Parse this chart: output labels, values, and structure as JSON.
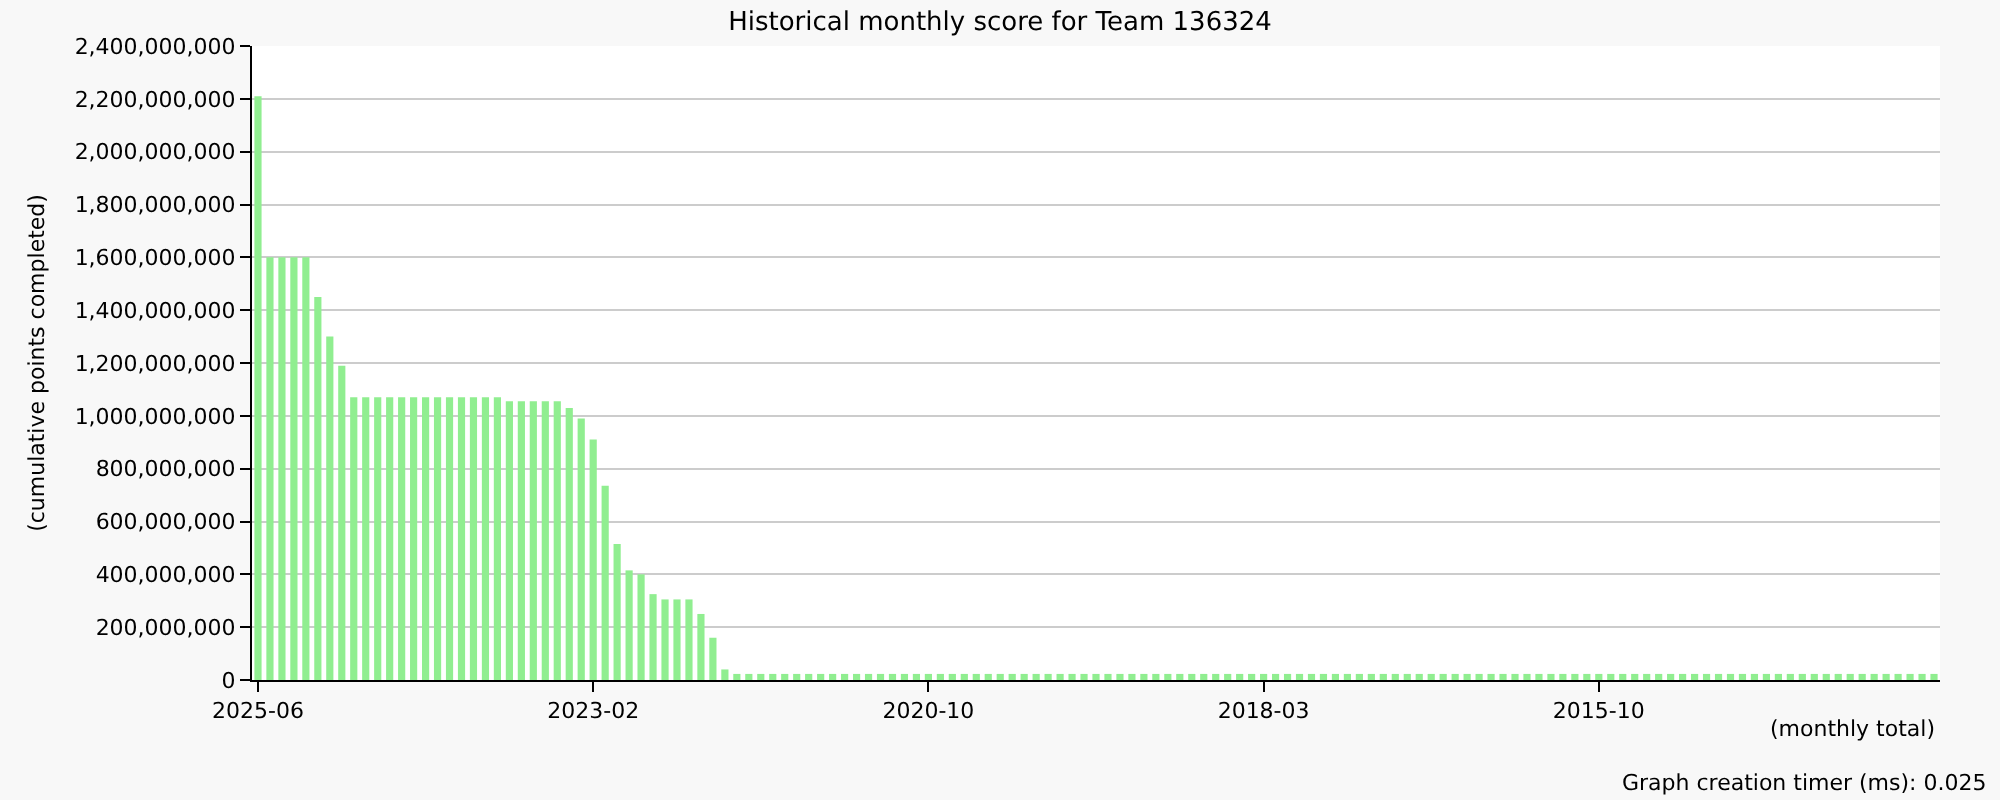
{
  "chart_data": {
    "type": "bar",
    "title": "Historical monthly score for Team 136324",
    "xlabel": "(monthly total)",
    "ylabel": "(cumulative points completed)",
    "annotations": [
      "Graph creation timer (ms): 0.025"
    ],
    "categories": [
      "2025-06",
      null,
      null,
      null,
      null,
      null,
      null,
      null,
      null,
      null,
      null,
      null,
      null,
      null,
      null,
      null,
      null,
      null,
      null,
      null,
      null,
      null,
      null,
      null,
      null,
      null,
      null,
      null,
      "2023-02",
      null,
      null,
      null,
      null,
      null,
      null,
      null,
      null,
      null,
      null,
      null,
      null,
      null,
      null,
      null,
      null,
      null,
      null,
      null,
      null,
      null,
      null,
      null,
      null,
      null,
      null,
      null,
      "2020-10",
      null,
      null,
      null,
      null,
      null,
      null,
      null,
      null,
      null,
      null,
      null,
      null,
      null,
      null,
      null,
      null,
      null,
      null,
      null,
      null,
      null,
      null,
      null,
      null,
      null,
      null,
      null,
      "2018-03",
      null,
      null,
      null,
      null,
      null,
      null,
      null,
      null,
      null,
      null,
      null,
      null,
      null,
      null,
      null,
      null,
      null,
      null,
      null,
      null,
      null,
      null,
      null,
      null,
      null,
      null,
      null,
      "2015-10",
      null,
      null,
      null,
      null,
      null,
      null,
      null,
      null,
      null,
      null,
      null,
      null,
      null,
      null,
      null,
      null,
      null,
      null,
      null,
      null,
      null,
      null,
      null,
      null,
      null,
      null,
      null,
      null
    ],
    "values": [
      2210000000,
      1600000000,
      1600000000,
      1600000000,
      1600000000,
      1450000000,
      1300000000,
      1190000000,
      1070000000,
      1070000000,
      1070000000,
      1070000000,
      1070000000,
      1070000000,
      1070000000,
      1070000000,
      1070000000,
      1070000000,
      1070000000,
      1070000000,
      1070000000,
      1055000000,
      1055000000,
      1055000000,
      1055000000,
      1055000000,
      1030000000,
      990000000,
      910000000,
      735000000,
      515000000,
      415000000,
      400000000,
      325000000,
      305000000,
      305000000,
      305000000,
      250000000,
      160000000,
      40000000,
      23000000,
      23000000,
      23000000,
      23000000,
      23000000,
      23000000,
      23000000,
      23000000,
      23000000,
      23000000,
      23000000,
      23000000,
      23000000,
      23000000,
      23000000,
      23000000,
      23000000,
      23000000,
      23000000,
      23000000,
      23000000,
      23000000,
      23000000,
      23000000,
      23000000,
      23000000,
      23000000,
      23000000,
      23000000,
      23000000,
      23000000,
      23000000,
      23000000,
      23000000,
      23000000,
      23000000,
      23000000,
      23000000,
      23000000,
      23000000,
      23000000,
      23000000,
      23000000,
      23000000,
      23000000,
      23000000,
      23000000,
      23000000,
      23000000,
      23000000,
      23000000,
      23000000,
      23000000,
      23000000,
      23000000,
      23000000,
      23000000,
      23000000,
      23000000,
      23000000,
      23000000,
      23000000,
      23000000,
      23000000,
      23000000,
      23000000,
      23000000,
      23000000,
      23000000,
      23000000,
      23000000,
      23000000,
      23000000,
      23000000,
      23000000,
      23000000,
      23000000,
      23000000,
      23000000,
      23000000,
      23000000,
      23000000,
      23000000,
      23000000,
      23000000,
      23000000,
      23000000,
      23000000,
      23000000,
      23000000,
      23000000,
      23000000,
      23000000,
      23000000,
      23000000,
      23000000,
      23000000,
      23000000,
      23000000,
      23000000,
      23000000
    ],
    "color": "#90ee90",
    "ylim": [
      0,
      2400000000
    ],
    "yticks": [
      0,
      {
        "value": 200000000,
        "label": "200,000,000"
      },
      {
        "value": 400000000,
        "label": "400,000,000"
      },
      {
        "value": 600000000,
        "label": "600,000,000"
      },
      {
        "value": 800000000,
        "label": "800,000,000"
      },
      {
        "value": 1000000000,
        "label": "1,000,000,000"
      },
      {
        "value": 1200000000,
        "label": "1,200,000,000"
      },
      {
        "value": 1400000000,
        "label": "1,400,000,000"
      },
      {
        "value": 1600000000,
        "label": "1,600,000,000"
      },
      {
        "value": 1800000000,
        "label": "1,800,000,000"
      },
      {
        "value": 2000000000,
        "label": "2,000,000,000"
      },
      {
        "value": 2200000000,
        "label": "2,200,000,000"
      },
      {
        "value": 2400000000,
        "label": "2,400,000,000"
      }
    ],
    "grid": "y"
  }
}
